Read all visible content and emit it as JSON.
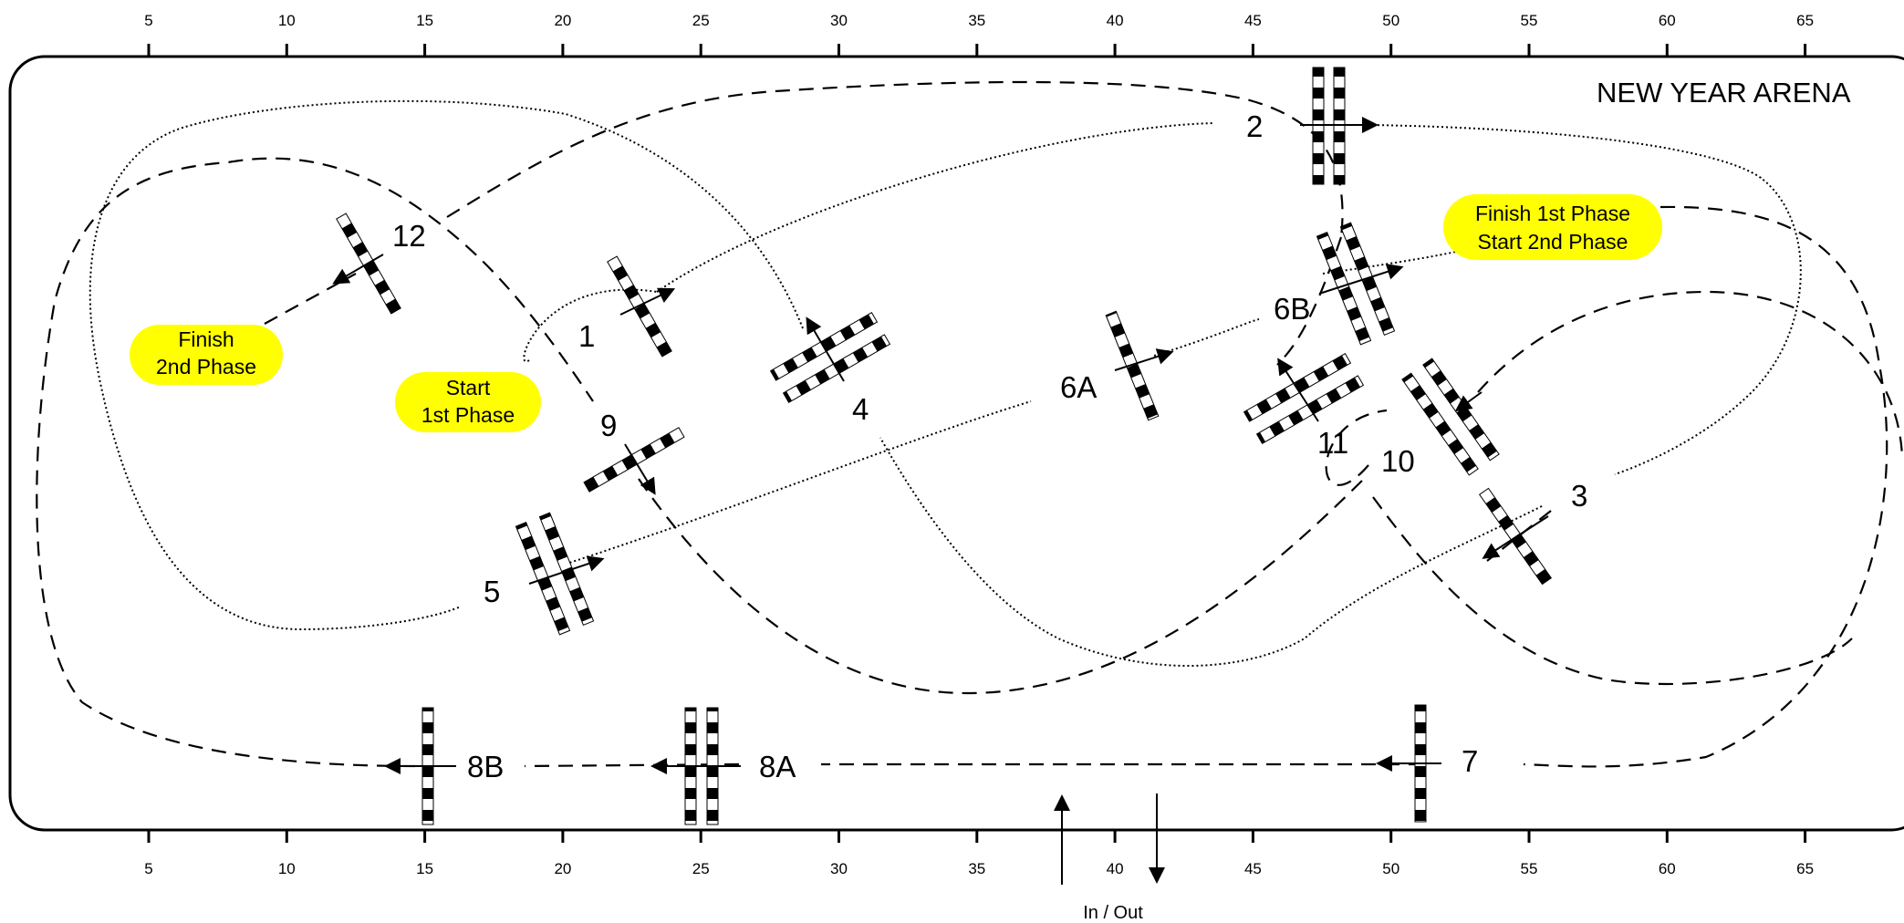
{
  "arena": {
    "title": "NEW YEAR ARENA",
    "x_ticks": [
      "5",
      "10",
      "15",
      "20",
      "25",
      "30",
      "35",
      "40",
      "45",
      "50",
      "55",
      "60",
      "65"
    ]
  },
  "labels": {
    "start_1st_line1": "Start",
    "start_1st_line2": "1st Phase",
    "finish_2nd_line1": "Finish",
    "finish_2nd_line2": "2nd Phase",
    "finish_start_line1": "Finish 1st Phase",
    "finish_start_line2": "Start  2nd Phase",
    "in_out": "In / Out"
  },
  "fences": [
    "1",
    "2",
    "3",
    "4",
    "5",
    "6A",
    "6B",
    "7",
    "8A",
    "8B",
    "9",
    "10",
    "11",
    "12"
  ],
  "colors": {
    "label_fill": "#ffff00",
    "line": "#000000"
  }
}
